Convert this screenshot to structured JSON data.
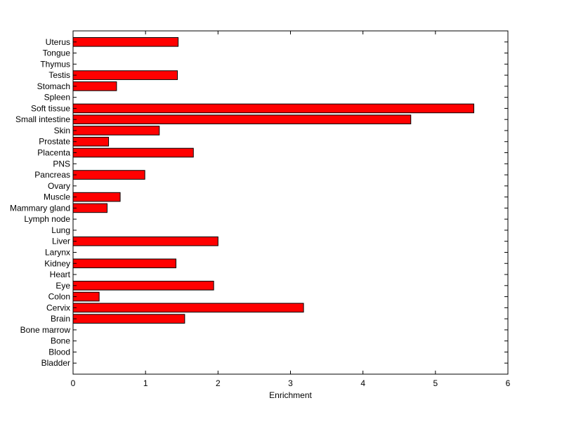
{
  "chart_data": {
    "type": "bar",
    "orientation": "horizontal",
    "title": "",
    "xlabel": "Enrichment",
    "ylabel": "",
    "xlim": [
      0,
      6
    ],
    "xticks": [
      "0",
      "1",
      "2",
      "3",
      "4",
      "5",
      "6"
    ],
    "grid": false,
    "colors": {
      "bar_fill": "#ff0000",
      "bar_edge": "#000000",
      "axis": "#000000",
      "background": "#ffffff"
    },
    "categories": [
      "Bladder",
      "Blood",
      "Bone",
      "Bone marrow",
      "Brain",
      "Cervix",
      "Colon",
      "Eye",
      "Heart",
      "Kidney",
      "Larynx",
      "Liver",
      "Lung",
      "Lymph node",
      "Mammary gland",
      "Muscle",
      "Ovary",
      "Pancreas",
      "PNS",
      "Placenta",
      "Prostate",
      "Skin",
      "Small intestine",
      "Soft tissue",
      "Spleen",
      "Stomach",
      "Testis",
      "Thymus",
      "Tongue",
      "Uterus"
    ],
    "values": [
      0,
      0,
      0,
      0,
      1.54,
      3.18,
      0.36,
      1.94,
      0,
      1.42,
      0,
      2.0,
      0,
      0,
      0.47,
      0.65,
      0,
      0.99,
      0,
      1.66,
      0.49,
      1.19,
      4.66,
      5.53,
      0,
      0.6,
      1.44,
      0,
      0,
      1.45
    ]
  }
}
